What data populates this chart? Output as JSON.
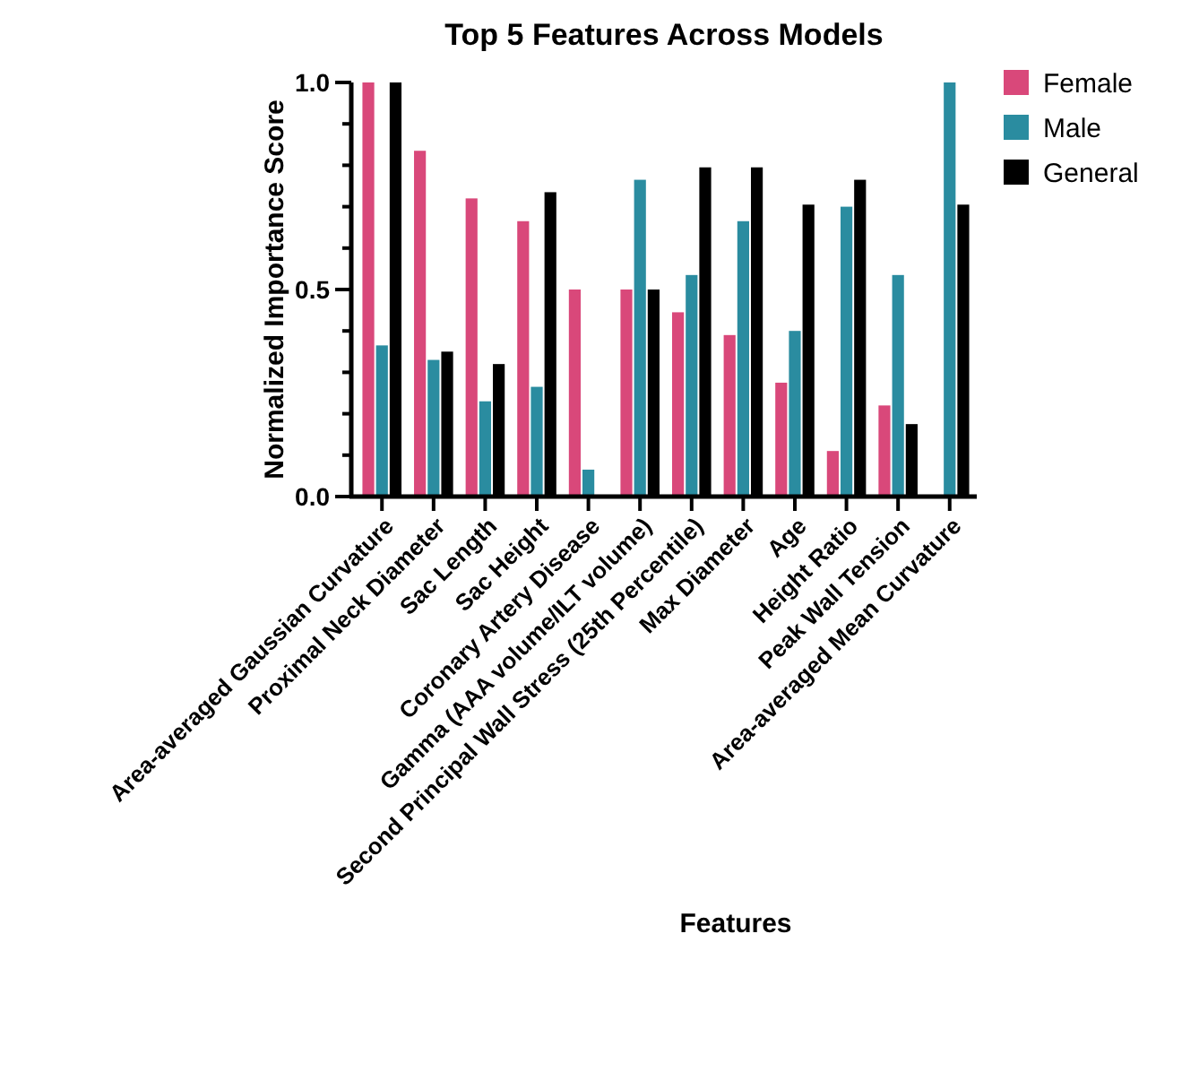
{
  "chart_data": {
    "type": "bar",
    "title": "Top 5 Features Across Models",
    "xlabel": "Features",
    "ylabel": "Normalized Importance Score",
    "categories": [
      "Area-averaged Gaussian Curvature",
      "Proximal Neck Diameter",
      "Sac Length",
      "Sac Height",
      "Coronary Artery Disease",
      "Gamma (AAA volume/ILT volume)",
      "Second Principal Wall Stress (25th Percentile)",
      "Max Diameter",
      "Age",
      "Height Ratio",
      "Peak Wall Tension",
      "Area-averaged Mean Curvature"
    ],
    "series": [
      {
        "name": "Female",
        "color": "#d9487a",
        "values": [
          1.0,
          0.835,
          0.72,
          0.665,
          0.5,
          0.5,
          0.445,
          0.39,
          0.275,
          0.11,
          0.22,
          null
        ]
      },
      {
        "name": "Male",
        "color": "#2a8ca0",
        "values": [
          0.365,
          0.33,
          0.23,
          0.265,
          0.065,
          0.765,
          0.535,
          0.665,
          0.4,
          0.7,
          0.535,
          1.0
        ]
      },
      {
        "name": "General",
        "color": "#000000",
        "values": [
          1.0,
          0.35,
          0.32,
          0.735,
          null,
          0.5,
          0.795,
          0.795,
          0.705,
          0.765,
          0.175,
          0.705
        ]
      }
    ],
    "ylim": [
      0,
      1
    ],
    "yticks": [
      {
        "value": 0,
        "label": "0.0"
      },
      {
        "value": 0.1,
        "label": null
      },
      {
        "value": 0.2,
        "label": null
      },
      {
        "value": 0.3,
        "label": null
      },
      {
        "value": 0.4,
        "label": null
      },
      {
        "value": 0.5,
        "label": "0.5"
      },
      {
        "value": 0.6,
        "label": null
      },
      {
        "value": 0.7,
        "label": null
      },
      {
        "value": 0.8,
        "label": null
      },
      {
        "value": 0.9,
        "label": null
      },
      {
        "value": 1,
        "label": "1.0"
      }
    ],
    "grid": false,
    "legend": "right"
  }
}
